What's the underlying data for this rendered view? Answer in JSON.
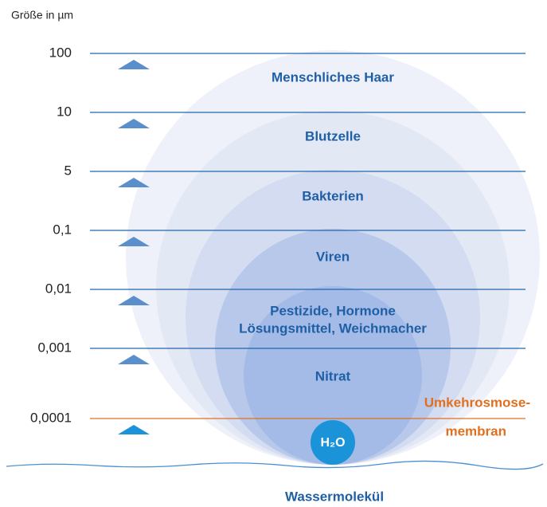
{
  "axis_title": "Größe in µm",
  "levels": [
    "100",
    "10",
    "5",
    "0,1",
    "0,01",
    "0,001",
    "0,0001"
  ],
  "particles": [
    "Menschliches Haar",
    "Blutzelle",
    "Bakterien",
    "Viren",
    "Pestizide, Hormone",
    "Lösungsmittel, Weichmacher",
    "Nitrat"
  ],
  "membrane": [
    "Umkehrosmose-",
    "membran"
  ],
  "molecule": {
    "symbol": "H₂O",
    "label": "Wassermolekül"
  }
}
